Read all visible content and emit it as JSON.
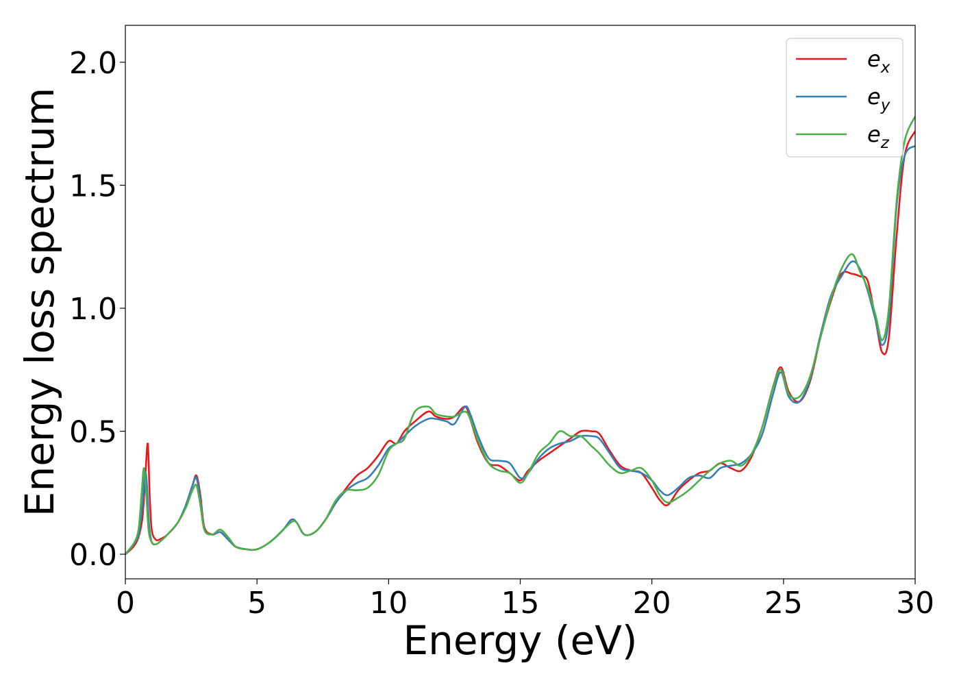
{
  "chart_data": {
    "type": "line",
    "title": "",
    "xlabel": "Energy (eV)",
    "ylabel": "Energy loss spectrum",
    "xlim": [
      0,
      30
    ],
    "ylim": [
      -0.1,
      2.15
    ],
    "xticks": [
      0,
      5,
      10,
      15,
      20,
      25,
      30
    ],
    "xtick_labels": [
      "0",
      "5",
      "10",
      "15",
      "20",
      "25",
      "30"
    ],
    "yticks": [
      0.0,
      0.5,
      1.0,
      1.5,
      2.0
    ],
    "ytick_labels": [
      "0.0",
      "0.5",
      "1.0",
      "1.5",
      "2.0"
    ],
    "grid": false,
    "legend_position": "top-right",
    "series": [
      {
        "name": "e",
        "subscript": "x",
        "color": "#e41a1c",
        "x": [
          0,
          0.3,
          0.5,
          0.65,
          0.75,
          0.85,
          0.92,
          1.0,
          1.15,
          1.3,
          1.6,
          2.0,
          2.3,
          2.55,
          2.7,
          2.85,
          3.0,
          3.3,
          3.6,
          3.9,
          4.2,
          4.6,
          5.0,
          5.5,
          6.0,
          6.3,
          6.5,
          6.8,
          7.2,
          7.6,
          8.0,
          8.4,
          8.8,
          9.2,
          9.6,
          10.0,
          10.3,
          10.6,
          11.0,
          11.5,
          11.8,
          12.2,
          12.5,
          12.9,
          13.1,
          13.4,
          13.8,
          14.2,
          14.6,
          15.0,
          15.3,
          15.7,
          16.1,
          16.5,
          16.9,
          17.3,
          17.7,
          18.0,
          18.4,
          18.8,
          19.2,
          19.6,
          20.0,
          20.3,
          20.6,
          21.0,
          21.4,
          21.8,
          22.2,
          22.6,
          23.0,
          23.4,
          23.8,
          24.2,
          24.6,
          24.9,
          25.2,
          25.6,
          26.0,
          26.4,
          26.8,
          27.2,
          27.6,
          27.9,
          28.2,
          28.5,
          28.75,
          29.0,
          29.3,
          29.6,
          30.0
        ],
        "y": [
          0.0,
          0.03,
          0.07,
          0.15,
          0.3,
          0.45,
          0.25,
          0.1,
          0.06,
          0.06,
          0.08,
          0.13,
          0.2,
          0.28,
          0.32,
          0.24,
          0.11,
          0.08,
          0.09,
          0.06,
          0.03,
          0.02,
          0.02,
          0.05,
          0.1,
          0.14,
          0.13,
          0.08,
          0.09,
          0.14,
          0.21,
          0.27,
          0.32,
          0.35,
          0.4,
          0.46,
          0.45,
          0.5,
          0.54,
          0.58,
          0.56,
          0.55,
          0.56,
          0.6,
          0.55,
          0.45,
          0.37,
          0.36,
          0.33,
          0.3,
          0.34,
          0.38,
          0.41,
          0.44,
          0.47,
          0.5,
          0.5,
          0.49,
          0.42,
          0.36,
          0.34,
          0.33,
          0.27,
          0.22,
          0.2,
          0.26,
          0.3,
          0.33,
          0.34,
          0.37,
          0.35,
          0.34,
          0.4,
          0.52,
          0.68,
          0.76,
          0.66,
          0.62,
          0.7,
          0.88,
          1.03,
          1.14,
          1.14,
          1.13,
          1.11,
          0.95,
          0.82,
          0.88,
          1.3,
          1.62,
          1.72
        ]
      },
      {
        "name": "e",
        "subscript": "y",
        "color": "#377eb8",
        "x": [
          0,
          0.3,
          0.5,
          0.65,
          0.75,
          0.82,
          0.9,
          1.0,
          1.15,
          1.3,
          1.6,
          2.0,
          2.3,
          2.55,
          2.7,
          2.85,
          3.0,
          3.3,
          3.6,
          3.9,
          4.2,
          4.6,
          5.0,
          5.5,
          6.0,
          6.3,
          6.5,
          6.8,
          7.2,
          7.6,
          8.0,
          8.4,
          8.8,
          9.2,
          9.6,
          10.0,
          10.3,
          10.6,
          11.0,
          11.5,
          11.8,
          12.2,
          12.5,
          12.9,
          13.1,
          13.4,
          13.8,
          14.2,
          14.6,
          15.0,
          15.3,
          15.7,
          16.1,
          16.5,
          16.9,
          17.3,
          17.7,
          18.0,
          18.4,
          18.8,
          19.2,
          19.6,
          20.0,
          20.3,
          20.6,
          21.0,
          21.4,
          21.8,
          22.2,
          22.6,
          23.0,
          23.4,
          23.8,
          24.2,
          24.6,
          24.9,
          25.2,
          25.6,
          26.0,
          26.4,
          26.8,
          27.2,
          27.6,
          27.9,
          28.2,
          28.5,
          28.75,
          29.0,
          29.3,
          29.6,
          30.0
        ],
        "y": [
          0.0,
          0.04,
          0.08,
          0.2,
          0.33,
          0.28,
          0.12,
          0.05,
          0.04,
          0.05,
          0.08,
          0.13,
          0.2,
          0.28,
          0.31,
          0.22,
          0.1,
          0.08,
          0.09,
          0.06,
          0.03,
          0.02,
          0.02,
          0.05,
          0.1,
          0.14,
          0.13,
          0.08,
          0.09,
          0.14,
          0.21,
          0.26,
          0.29,
          0.31,
          0.36,
          0.43,
          0.45,
          0.48,
          0.52,
          0.55,
          0.55,
          0.54,
          0.53,
          0.6,
          0.57,
          0.48,
          0.39,
          0.38,
          0.37,
          0.31,
          0.33,
          0.39,
          0.43,
          0.45,
          0.46,
          0.48,
          0.48,
          0.47,
          0.41,
          0.35,
          0.34,
          0.33,
          0.3,
          0.26,
          0.24,
          0.27,
          0.31,
          0.32,
          0.31,
          0.35,
          0.36,
          0.37,
          0.41,
          0.49,
          0.65,
          0.74,
          0.64,
          0.62,
          0.71,
          0.89,
          1.05,
          1.13,
          1.19,
          1.16,
          1.07,
          0.95,
          0.85,
          0.96,
          1.42,
          1.62,
          1.66
        ]
      },
      {
        "name": "e",
        "subscript": "z",
        "color": "#4daf4a",
        "x": [
          0,
          0.3,
          0.5,
          0.62,
          0.7,
          0.78,
          0.88,
          1.0,
          1.15,
          1.3,
          1.6,
          2.0,
          2.3,
          2.55,
          2.7,
          2.85,
          3.0,
          3.3,
          3.6,
          3.9,
          4.2,
          4.6,
          5.0,
          5.5,
          6.0,
          6.3,
          6.5,
          6.8,
          7.2,
          7.6,
          8.0,
          8.4,
          8.8,
          9.2,
          9.6,
          10.0,
          10.3,
          10.6,
          11.0,
          11.5,
          11.8,
          12.2,
          12.5,
          12.9,
          13.1,
          13.4,
          13.8,
          14.2,
          14.6,
          15.0,
          15.3,
          15.7,
          16.1,
          16.5,
          16.9,
          17.3,
          17.7,
          18.0,
          18.4,
          18.8,
          19.2,
          19.6,
          20.0,
          20.3,
          20.6,
          21.0,
          21.4,
          21.8,
          22.2,
          22.6,
          23.0,
          23.4,
          23.8,
          24.2,
          24.6,
          24.9,
          25.2,
          25.6,
          26.0,
          26.4,
          26.8,
          27.2,
          27.6,
          27.9,
          28.2,
          28.5,
          28.75,
          29.0,
          29.3,
          29.6,
          30.0
        ],
        "y": [
          0.0,
          0.04,
          0.1,
          0.25,
          0.35,
          0.27,
          0.1,
          0.05,
          0.04,
          0.05,
          0.08,
          0.13,
          0.19,
          0.26,
          0.28,
          0.2,
          0.1,
          0.08,
          0.1,
          0.07,
          0.03,
          0.02,
          0.02,
          0.05,
          0.1,
          0.13,
          0.13,
          0.08,
          0.09,
          0.14,
          0.22,
          0.26,
          0.26,
          0.27,
          0.32,
          0.42,
          0.45,
          0.47,
          0.58,
          0.6,
          0.57,
          0.56,
          0.56,
          0.58,
          0.55,
          0.46,
          0.37,
          0.34,
          0.33,
          0.29,
          0.33,
          0.41,
          0.45,
          0.5,
          0.48,
          0.48,
          0.44,
          0.41,
          0.36,
          0.33,
          0.34,
          0.35,
          0.3,
          0.24,
          0.21,
          0.23,
          0.26,
          0.3,
          0.34,
          0.37,
          0.38,
          0.36,
          0.41,
          0.52,
          0.68,
          0.75,
          0.65,
          0.64,
          0.72,
          0.88,
          1.04,
          1.16,
          1.22,
          1.15,
          1.08,
          0.97,
          0.87,
          1.0,
          1.44,
          1.68,
          1.78
        ]
      }
    ]
  }
}
